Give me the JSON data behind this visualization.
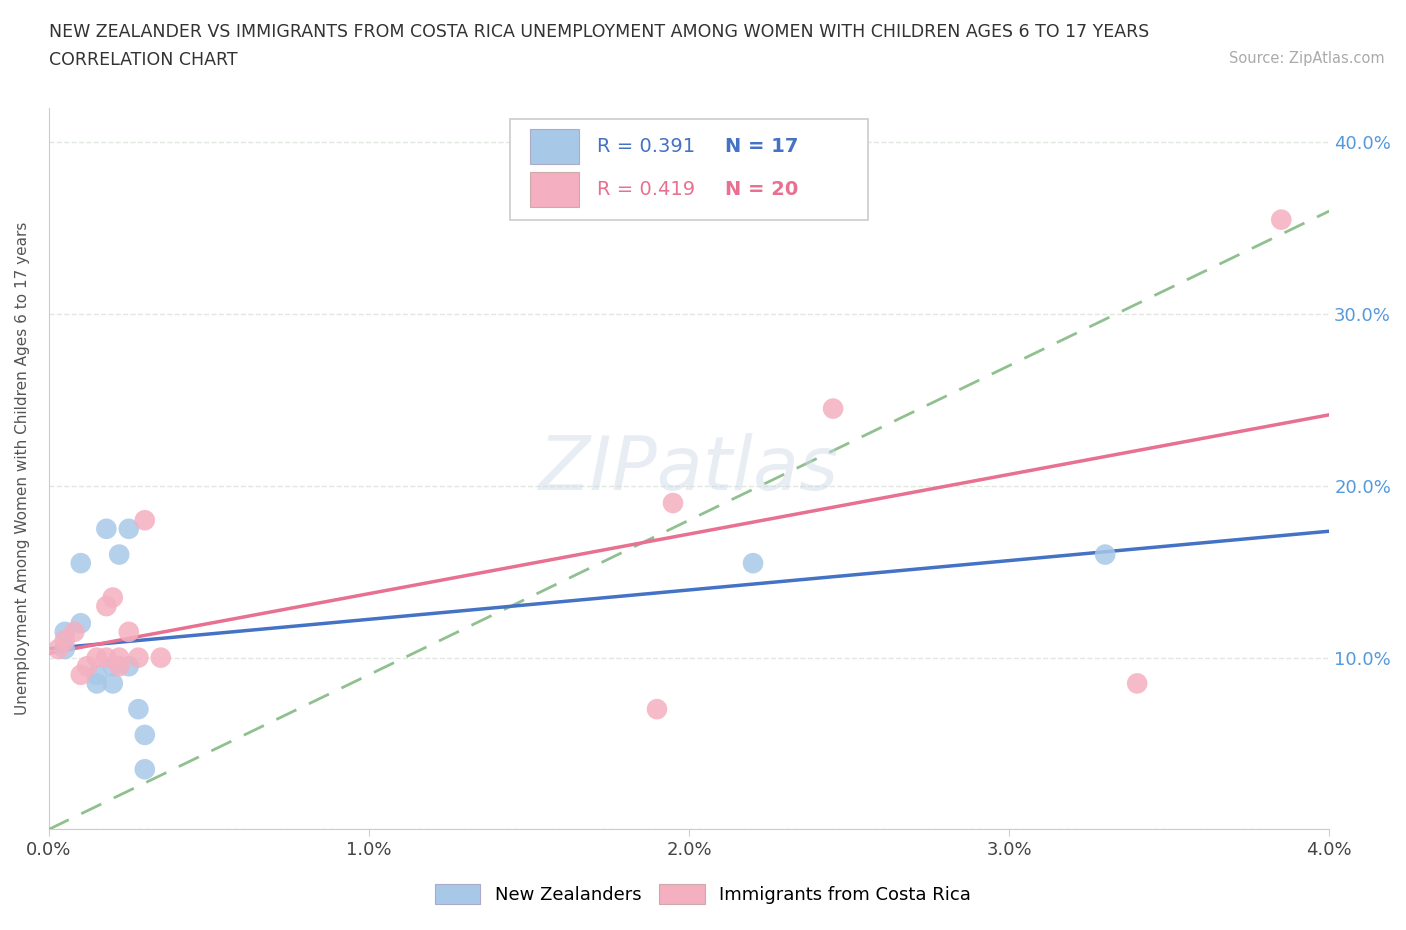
{
  "title_line1": "NEW ZEALANDER VS IMMIGRANTS FROM COSTA RICA UNEMPLOYMENT AMONG WOMEN WITH CHILDREN AGES 6 TO 17 YEARS",
  "title_line2": "CORRELATION CHART",
  "source_text": "Source: ZipAtlas.com",
  "ylabel": "Unemployment Among Women with Children Ages 6 to 17 years",
  "xlim": [
    0.0,
    0.04
  ],
  "ylim": [
    0.0,
    0.42
  ],
  "xticks": [
    0.0,
    0.01,
    0.02,
    0.03,
    0.04
  ],
  "xtick_labels": [
    "0.0%",
    "1.0%",
    "2.0%",
    "3.0%",
    "4.0%"
  ],
  "yticks": [
    0.0,
    0.1,
    0.2,
    0.3,
    0.4
  ],
  "ytick_labels": [
    "",
    "10.0%",
    "20.0%",
    "30.0%",
    "40.0%"
  ],
  "nz_x": [
    0.0005,
    0.0005,
    0.001,
    0.001,
    0.0015,
    0.0015,
    0.0018,
    0.002,
    0.002,
    0.0022,
    0.0025,
    0.0025,
    0.0028,
    0.003,
    0.003,
    0.022,
    0.033
  ],
  "nz_y": [
    0.105,
    0.115,
    0.155,
    0.12,
    0.085,
    0.09,
    0.175,
    0.085,
    0.095,
    0.16,
    0.095,
    0.175,
    0.07,
    0.055,
    0.035,
    0.155,
    0.16
  ],
  "cr_x": [
    0.0003,
    0.0005,
    0.0008,
    0.001,
    0.0012,
    0.0015,
    0.0018,
    0.0018,
    0.002,
    0.0022,
    0.0022,
    0.0025,
    0.0028,
    0.003,
    0.0035,
    0.019,
    0.0195,
    0.0245,
    0.034,
    0.0385
  ],
  "cr_y": [
    0.105,
    0.11,
    0.115,
    0.09,
    0.095,
    0.1,
    0.1,
    0.13,
    0.135,
    0.095,
    0.1,
    0.115,
    0.1,
    0.18,
    0.1,
    0.07,
    0.19,
    0.245,
    0.085,
    0.355
  ],
  "nz_color": "#a8c8e8",
  "cr_color": "#f4b0c0",
  "nz_line_color": "#4472c4",
  "cr_line_color": "#e87090",
  "dashed_line_color": "#90c090",
  "R_nz": 0.391,
  "N_nz": 17,
  "R_cr": 0.419,
  "N_cr": 20,
  "watermark": "ZIPatlas",
  "bg_color": "#ffffff",
  "grid_color": "#e0e8e0"
}
